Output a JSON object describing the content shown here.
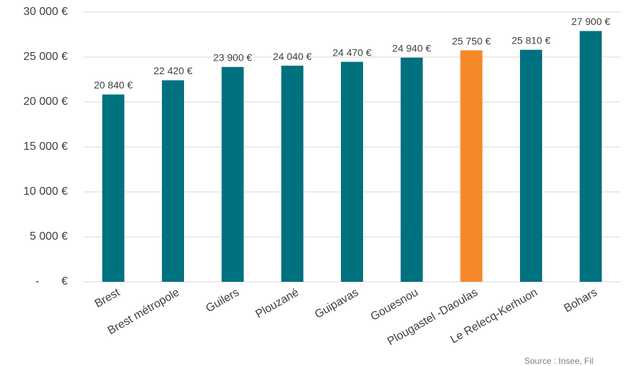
{
  "chart_data": {
    "type": "bar",
    "categories": [
      "Brest",
      "Brest métropole",
      "Guilers",
      "Plouzané",
      "Guipavas",
      "Gouesnou",
      "Plougastel -Daoulas",
      "Le Relecq-Kerhuon",
      "Bohars"
    ],
    "values": [
      20840,
      22420,
      23900,
      24040,
      24470,
      24940,
      25750,
      25810,
      27900
    ],
    "value_labels": [
      "20 840 €",
      "22 420 €",
      "23 900 €",
      "24 040 €",
      "24 470 €",
      "24 940 €",
      "25 750 €",
      "25 810 €",
      "27 900 €"
    ],
    "colors": [
      "#00717f",
      "#00717f",
      "#00717f",
      "#00717f",
      "#00717f",
      "#00717f",
      "#f5892a",
      "#00717f",
      "#00717f"
    ],
    "ylim": [
      0,
      30000
    ],
    "yticks": [
      {
        "value": 0,
        "label": "-       €"
      },
      {
        "value": 5000,
        "label": "5 000 €"
      },
      {
        "value": 10000,
        "label": "10 000 €"
      },
      {
        "value": 15000,
        "label": "15 000 €"
      },
      {
        "value": 20000,
        "label": "20 000 €"
      },
      {
        "value": 25000,
        "label": "25 000 €"
      },
      {
        "value": 30000,
        "label": "30 000 €"
      }
    ],
    "grid": true,
    "source": "Source : Insee, Fil"
  }
}
